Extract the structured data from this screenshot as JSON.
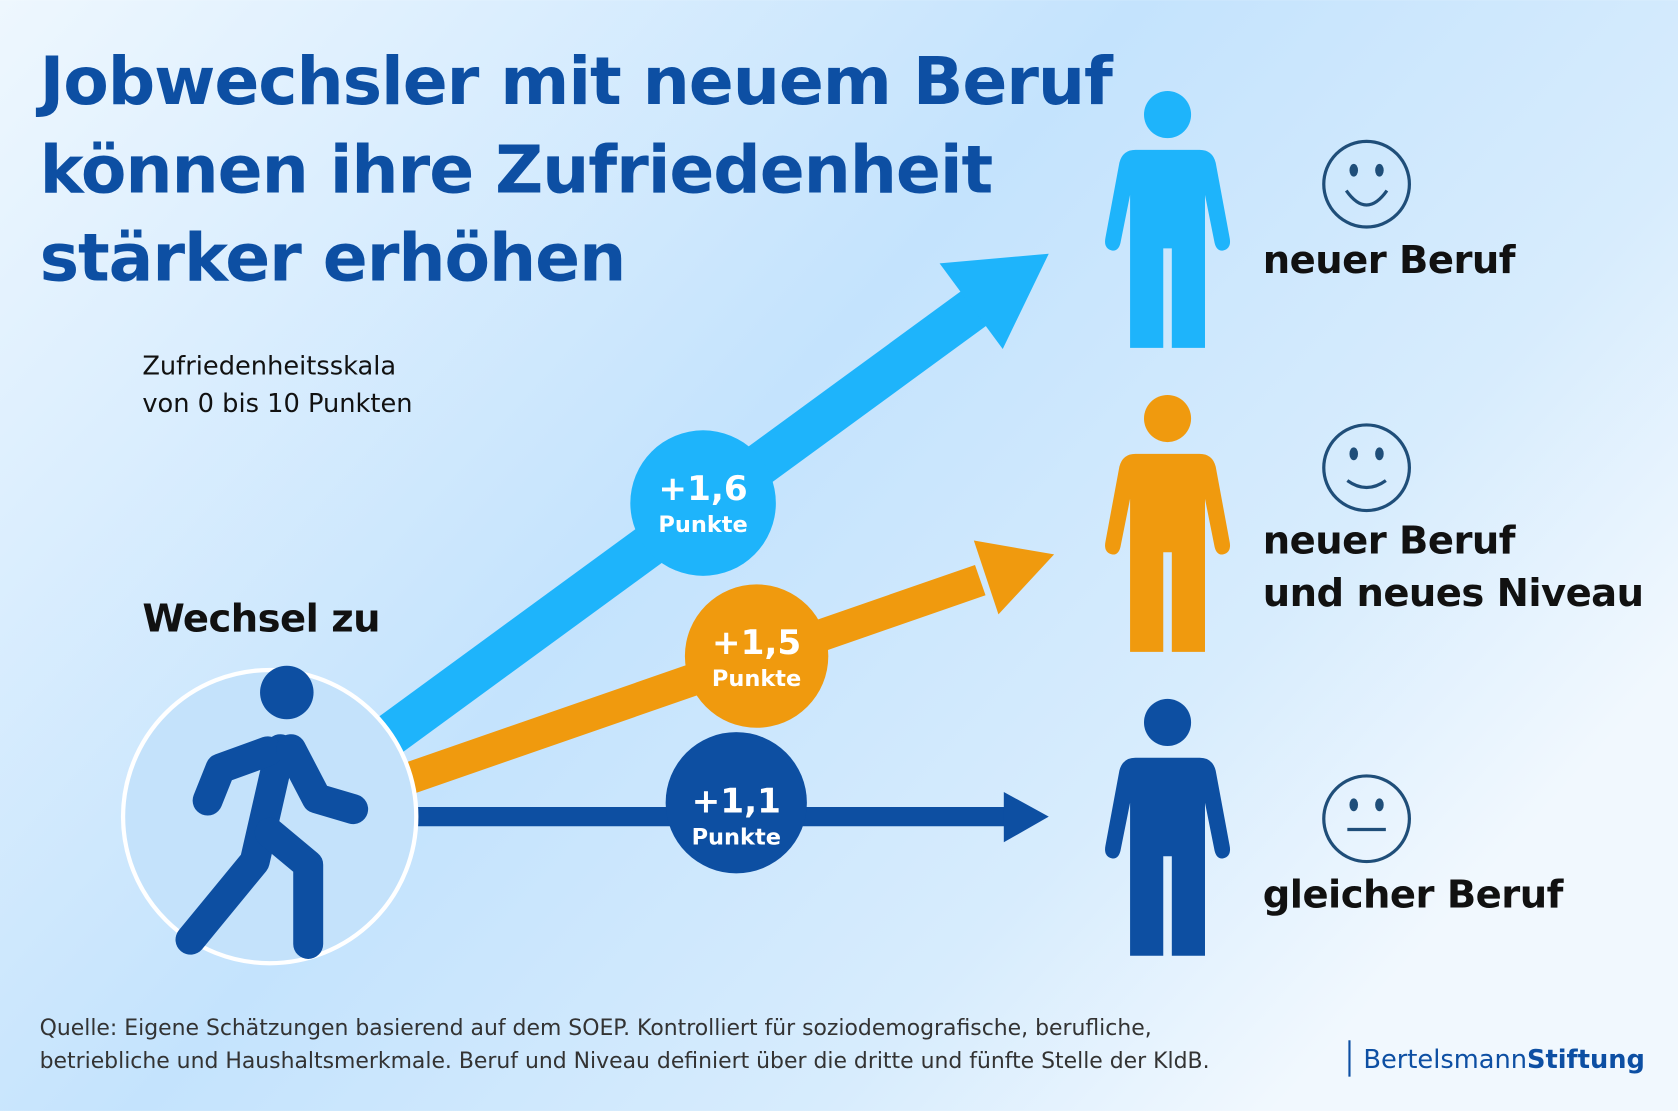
{
  "title": [
    "Jobwechsler mit neuem Beruf",
    "können ihre Zufriedenheit",
    "stärker erhöhen"
  ],
  "scale_note": [
    "Zufriedenheitsskala",
    "von 0 bis 10 Punkten"
  ],
  "start_label": "Wechsel zu",
  "colors": {
    "light_blue": "#1eb4fb",
    "orange": "#f09a0e",
    "dark_blue": "#0d4fa2",
    "title": "#0d4fa3"
  },
  "groups": [
    {
      "value": "+1,6",
      "unit": "Punkte",
      "label": [
        "neuer Beruf"
      ],
      "smiley": "big-smile"
    },
    {
      "value": "+1,5",
      "unit": "Punkte",
      "label": [
        "neuer Beruf",
        "und neues Niveau"
      ],
      "smiley": "smile"
    },
    {
      "value": "+1,1",
      "unit": "Punkte",
      "label": [
        "gleicher Beruf"
      ],
      "smiley": "neutral"
    }
  ],
  "footer": [
    "Quelle: Eigene Schätzungen basierend auf dem SOEP. Kontrolliert für soziodemografische, berufliche,",
    "betriebliche und Haushaltsmerkmale. Beruf und Niveau definiert über die dritte und fünfte Stelle der KldB."
  ],
  "logo": {
    "part1": "Bertelsmann",
    "part2": "Stiftung"
  }
}
